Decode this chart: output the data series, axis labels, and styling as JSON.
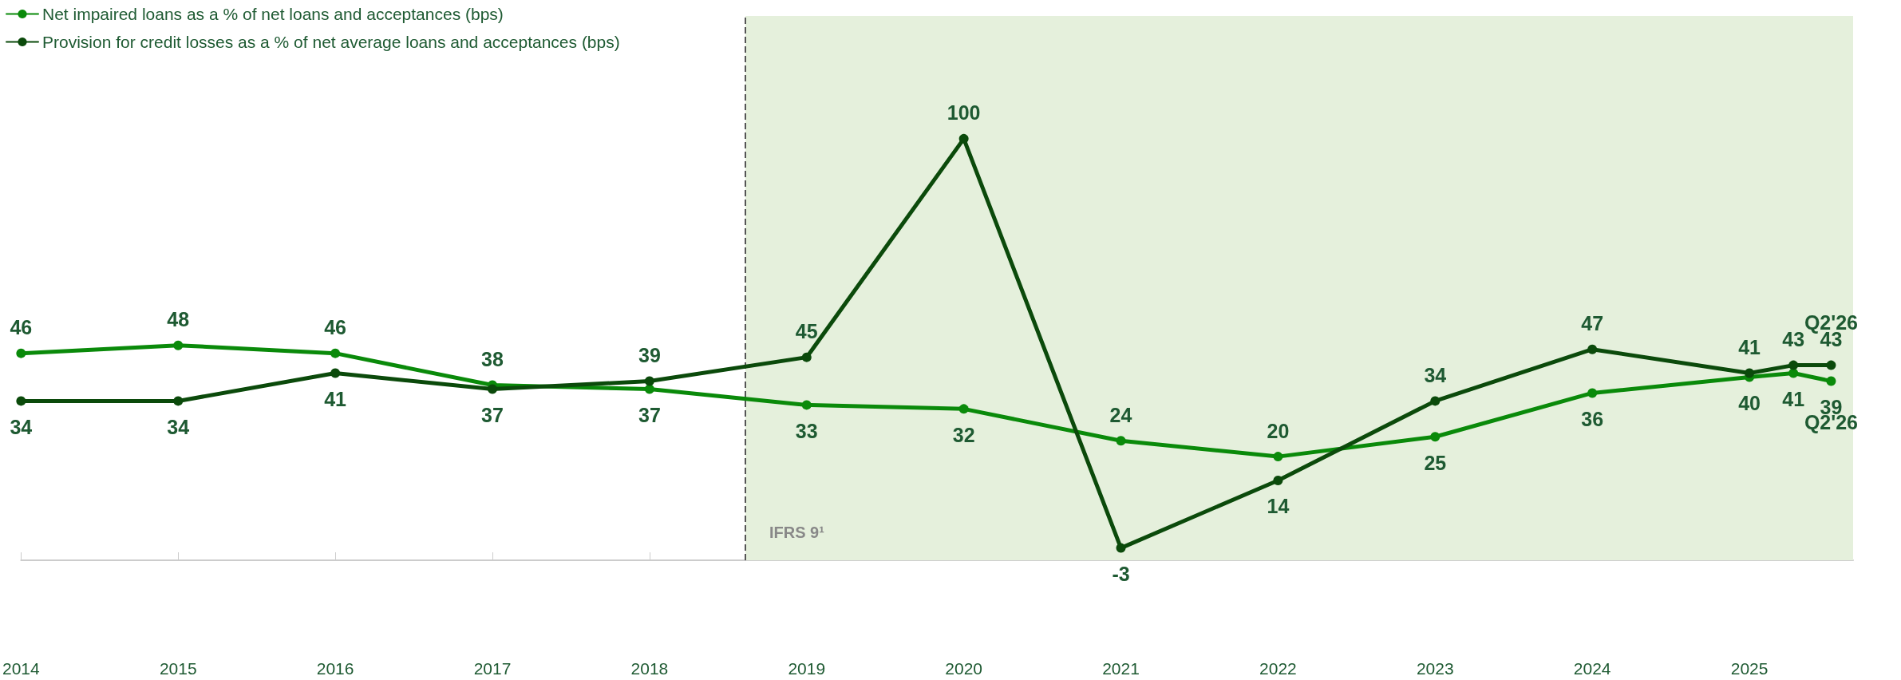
{
  "chart_data": {
    "type": "line",
    "x": [
      2014,
      2015,
      2016,
      2017,
      2018,
      2019,
      2020,
      2021,
      2022,
      2023,
      2024,
      2025,
      2025.28,
      2025.52
    ],
    "series": [
      {
        "name": "Net impaired loans as a % of net loans and acceptances (bps)",
        "color": "#0a8a0a",
        "values": [
          46,
          48,
          46,
          38,
          37,
          33,
          32,
          24,
          20,
          25,
          36,
          40,
          41,
          39
        ]
      },
      {
        "name": "Provision for credit losses as a % of net average loans and acceptances (bps)",
        "color": "#0b4a0b",
        "values": [
          34,
          34,
          41,
          37,
          39,
          45,
          100,
          -3,
          14,
          34,
          47,
          41,
          43,
          43
        ]
      }
    ],
    "xlim": [
      2014,
      2025.66
    ],
    "xticks": [
      2014,
      2015,
      2016,
      2017,
      2018,
      2019,
      2020,
      2021,
      2022,
      2023,
      2024,
      2025
    ],
    "tick_labels": "x",
    "data_labels": true,
    "annotations": [
      {
        "text": "Q2'26",
        "x": 2025.52,
        "y": 43
      },
      {
        "text": "Q2'26",
        "x": 2025.52,
        "y": 39
      }
    ],
    "bands": [
      {
        "axis": "x",
        "from": 2018.61,
        "to": 2025.66,
        "label": "IFRS 9¹",
        "color": "#e5f0dc"
      }
    ],
    "ref_lines": [
      {
        "axis": "x",
        "value": 2018.61,
        "color": "#555555",
        "line_style": "dashed"
      }
    ],
    "grid": false,
    "legend": "top left",
    "marker": "circle",
    "line_style": "solid"
  }
}
